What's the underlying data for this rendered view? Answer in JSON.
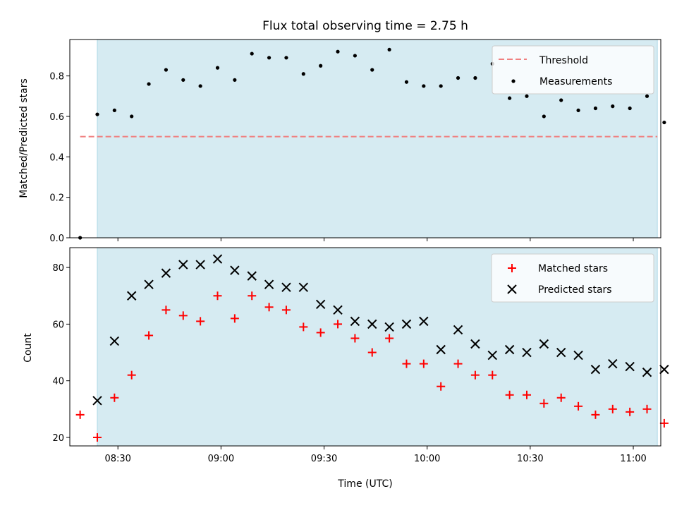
{
  "title": "Flux total observing time = 2.75 h",
  "colors": {
    "shade": "#add8e6",
    "threshold": "#f08080",
    "measurement": "#000000",
    "matched": "#ff0000",
    "predicted": "#000000"
  },
  "chart_data": [
    {
      "type": "scatter",
      "ylabel": "Matched/Predicted stars",
      "xlabel": "",
      "xlim": [
        "08:16",
        "11:08"
      ],
      "ylim": [
        0,
        0.98
      ],
      "yticks": [
        0.0,
        0.2,
        0.4,
        0.6,
        0.8
      ],
      "ytick_labels": [
        "0.0",
        "0.2",
        "0.4",
        "0.6",
        "0.8"
      ],
      "shaded_span": [
        "08:24",
        "11:07"
      ],
      "legend_position": "upper right",
      "threshold": {
        "name": "Threshold",
        "y": 0.5,
        "x_range": [
          "08:19",
          "11:07"
        ]
      },
      "series": [
        {
          "name": "Measurements",
          "x": [
            "08:19",
            "08:24",
            "08:29",
            "08:34",
            "08:39",
            "08:44",
            "08:49",
            "08:54",
            "08:59",
            "09:04",
            "09:09",
            "09:14",
            "09:19",
            "09:24",
            "09:29",
            "09:34",
            "09:39",
            "09:44",
            "09:49",
            "09:54",
            "09:59",
            "10:04",
            "10:09",
            "10:14",
            "10:19",
            "10:24",
            "10:29",
            "10:34",
            "10:39",
            "10:44",
            "10:49",
            "10:54",
            "10:59",
            "11:04",
            "11:09"
          ],
          "y": [
            0.0,
            0.61,
            0.63,
            0.6,
            0.76,
            0.83,
            0.78,
            0.75,
            0.84,
            0.78,
            0.91,
            0.89,
            0.89,
            0.81,
            0.85,
            0.92,
            0.9,
            0.83,
            0.93,
            0.77,
            0.75,
            0.75,
            0.79,
            0.79,
            0.86,
            0.69,
            0.7,
            0.6,
            0.68,
            0.63,
            0.64,
            0.65,
            0.64,
            0.7,
            0.57
          ]
        }
      ]
    },
    {
      "type": "scatter",
      "ylabel": "Count",
      "xlabel": "Time (UTC)",
      "xlim": [
        "08:16",
        "11:08"
      ],
      "ylim": [
        17,
        87
      ],
      "yticks": [
        20,
        40,
        60,
        80
      ],
      "ytick_labels": [
        "20",
        "40",
        "60",
        "80"
      ],
      "xticks": [
        "08:30",
        "09:00",
        "09:30",
        "10:00",
        "10:30",
        "11:00"
      ],
      "xtick_labels": [
        "08:30",
        "09:00",
        "09:30",
        "10:00",
        "10:30",
        "11:00"
      ],
      "shaded_span": [
        "08:24",
        "11:07"
      ],
      "legend_position": "upper right",
      "series": [
        {
          "name": "Matched stars",
          "marker": "+",
          "x": [
            "08:19",
            "08:24",
            "08:29",
            "08:34",
            "08:39",
            "08:44",
            "08:49",
            "08:54",
            "08:59",
            "09:04",
            "09:09",
            "09:14",
            "09:19",
            "09:24",
            "09:29",
            "09:34",
            "09:39",
            "09:44",
            "09:49",
            "09:54",
            "09:59",
            "10:04",
            "10:09",
            "10:14",
            "10:19",
            "10:24",
            "10:29",
            "10:34",
            "10:39",
            "10:44",
            "10:49",
            "10:54",
            "10:59",
            "11:04",
            "11:09"
          ],
          "y": [
            28,
            20,
            34,
            42,
            56,
            65,
            63,
            61,
            70,
            62,
            70,
            66,
            65,
            59,
            57,
            60,
            55,
            50,
            55,
            46,
            46,
            38,
            46,
            42,
            42,
            35,
            35,
            32,
            34,
            31,
            28,
            30,
            29,
            30,
            25
          ]
        },
        {
          "name": "Predicted stars",
          "marker": "x",
          "x": [
            "08:24",
            "08:29",
            "08:34",
            "08:39",
            "08:44",
            "08:49",
            "08:54",
            "08:59",
            "09:04",
            "09:09",
            "09:14",
            "09:19",
            "09:24",
            "09:29",
            "09:34",
            "09:39",
            "09:44",
            "09:49",
            "09:54",
            "09:59",
            "10:04",
            "10:09",
            "10:14",
            "10:19",
            "10:24",
            "10:29",
            "10:34",
            "10:39",
            "10:44",
            "10:49",
            "10:54",
            "10:59",
            "11:04",
            "11:09"
          ],
          "y": [
            33,
            54,
            70,
            74,
            78,
            81,
            81,
            83,
            79,
            77,
            74,
            73,
            73,
            67,
            65,
            61,
            60,
            59,
            60,
            61,
            51,
            58,
            53,
            49,
            51,
            50,
            53,
            50,
            49,
            44,
            46,
            45,
            43,
            44
          ]
        }
      ]
    }
  ]
}
